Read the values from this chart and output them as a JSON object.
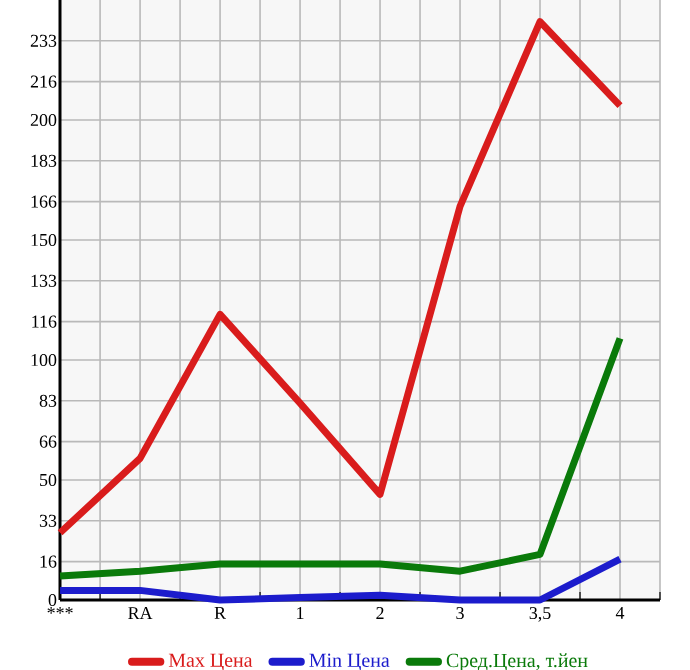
{
  "chart_data": {
    "type": "line",
    "categories": [
      "***",
      "RA",
      "R",
      "1",
      "2",
      "3",
      "3,5",
      "4"
    ],
    "series": [
      {
        "name": "Max Цена",
        "color": "#d91c1c",
        "values": [
          28,
          59,
          119,
          82,
          44,
          164,
          241,
          206
        ]
      },
      {
        "name": "Min Цена",
        "color": "#1c1ccc",
        "values": [
          4,
          4,
          0,
          1,
          2,
          0,
          0,
          17
        ]
      },
      {
        "name": "Сред.Цена, т.йен",
        "color": "#0a7a0a",
        "values": [
          10,
          12,
          15,
          15,
          15,
          12,
          19,
          109
        ]
      }
    ],
    "ylim": [
      0,
      250
    ],
    "yticks": [
      0,
      16,
      33,
      50,
      66,
      83,
      100,
      116,
      133,
      150,
      166,
      183,
      200,
      216,
      233
    ],
    "grid": true,
    "legend": "bottom",
    "marker": "none",
    "line_style": "solid"
  }
}
